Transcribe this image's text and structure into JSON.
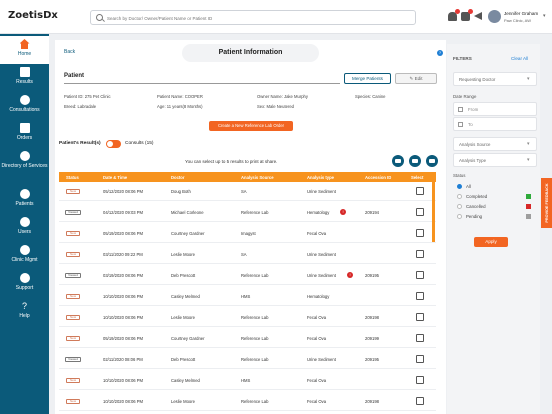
{
  "app": {
    "logo": "ZoetisDx"
  },
  "search": {
    "placeholder": "Search by Doctor/ Owner/Patient Name or Patient ID"
  },
  "user": {
    "name": "Jennifer Graham",
    "clinic": "Paw Clinic, AW"
  },
  "sidebar": {
    "items": [
      {
        "label": "Home"
      },
      {
        "label": "Results"
      },
      {
        "label": "Consultations"
      },
      {
        "label": "Orders"
      },
      {
        "label": "Directory of Services"
      },
      {
        "label": "Patients"
      },
      {
        "label": "Users"
      },
      {
        "label": "Clinic Mgmt"
      },
      {
        "label": "Support"
      },
      {
        "label": "Help"
      }
    ]
  },
  "header": {
    "back": "Back",
    "title": "Patient Information",
    "help": "?"
  },
  "patient": {
    "section_title": "Patient",
    "merge_label": "Merge Patients",
    "edit_label": "Edit",
    "patient_id": "Patient ID: 275 Pet Clinic",
    "patient_name": "Patient Name: COOPER",
    "owner_name": "Owner Name: Jake Murphy",
    "species": "Species: Canine",
    "breed": "Breed: Labradale",
    "age": "Age: 11 years(8 Months)",
    "sex": "Sex: Male Neutered",
    "create_label": "Create a New Reference Lab Order"
  },
  "tabs": {
    "results": "Patient's Result(s)",
    "consults": "Consults (15)"
  },
  "print_note": "You can select up to 5 results to print at share.",
  "table": {
    "headers": [
      "Status",
      "Date & Time",
      "Doctor",
      "Analysis Source",
      "Analysis type",
      "Accession ID",
      "Select"
    ],
    "rows": [
      {
        "status": "New",
        "date": "05/12/2020 08:06 PM",
        "doctor": "Doug Both",
        "source": "SA",
        "type": "Urine Sediment",
        "flag": "",
        "accession": ""
      },
      {
        "status": "Viewed",
        "date": "04/12/2020 09:03 PM",
        "doctor": "Michael Corleone",
        "source": "Reference Lab",
        "type": "Hematology",
        "flag": "!",
        "accession": "209194"
      },
      {
        "status": "New",
        "date": "05/19/2020 08:06 PM",
        "doctor": "Courtney Gardner",
        "source": "Imagyst",
        "type": "Fecal Ova",
        "flag": "",
        "accession": ""
      },
      {
        "status": "New",
        "date": "03/11/2020 09:22 PM",
        "doctor": "Leslie Moore",
        "source": "SA",
        "type": "Urine Sediment",
        "flag": "",
        "accession": ""
      },
      {
        "status": "Viewed",
        "date": "03/19/2020 08:06 PM",
        "doctor": "Deb Prescott",
        "source": "Reference Lab",
        "type": "Urine Sediment",
        "flag": "!",
        "accession": "209195"
      },
      {
        "status": "New",
        "date": "10/10/2020 08:06 PM",
        "doctor": "Casley Melmed",
        "source": "HMS",
        "type": "Hematology",
        "flag": "",
        "accession": ""
      },
      {
        "status": "New",
        "date": "10/10/2020 08:06 PM",
        "doctor": "Leslie Moore",
        "source": "Reference Lab",
        "type": "Fecal Ova",
        "flag": "",
        "accession": "209198"
      },
      {
        "status": "New",
        "date": "05/19/2020 08:06 PM",
        "doctor": "Courtney Gardner",
        "source": "Reference Lab",
        "type": "Fecal Ova",
        "flag": "",
        "accession": "209199"
      },
      {
        "status": "Viewed",
        "date": "02/11/2020 08:06 PM",
        "doctor": "Deb Prescott",
        "source": "Reference Lab",
        "type": "Urine Sediment",
        "flag": "",
        "accession": "209195"
      },
      {
        "status": "New",
        "date": "10/10/2020 08:06 PM",
        "doctor": "Casley Melmed",
        "source": "HMS",
        "type": "Fecal Ova",
        "flag": "",
        "accession": ""
      },
      {
        "status": "New",
        "date": "10/10/2020 08:06 PM",
        "doctor": "Leslie Moore",
        "source": "Reference Lab",
        "type": "Fecal Ova",
        "flag": "",
        "accession": "209198"
      }
    ]
  },
  "filters": {
    "title": "FILTERS",
    "clear": "Clear All",
    "doctor": "Requesting Doctor",
    "date_range": "Date Range",
    "from": "From",
    "to": "To",
    "source": "Analysis Source",
    "type": "Analysis Type",
    "status_label": "Status",
    "statuses": [
      {
        "label": "All",
        "color": ""
      },
      {
        "label": "Completed",
        "color": "#2eaa3a"
      },
      {
        "label": "Cancelled",
        "color": "#d62828"
      },
      {
        "label": "Pending",
        "color": "#9e9e9e"
      }
    ],
    "apply": "Apply"
  },
  "feedback": {
    "label": "PROVIDE FEEDBACK"
  },
  "colors": {
    "accent": "#f26522",
    "brand": "#0b5a7a",
    "table_header": "#f7931e"
  }
}
